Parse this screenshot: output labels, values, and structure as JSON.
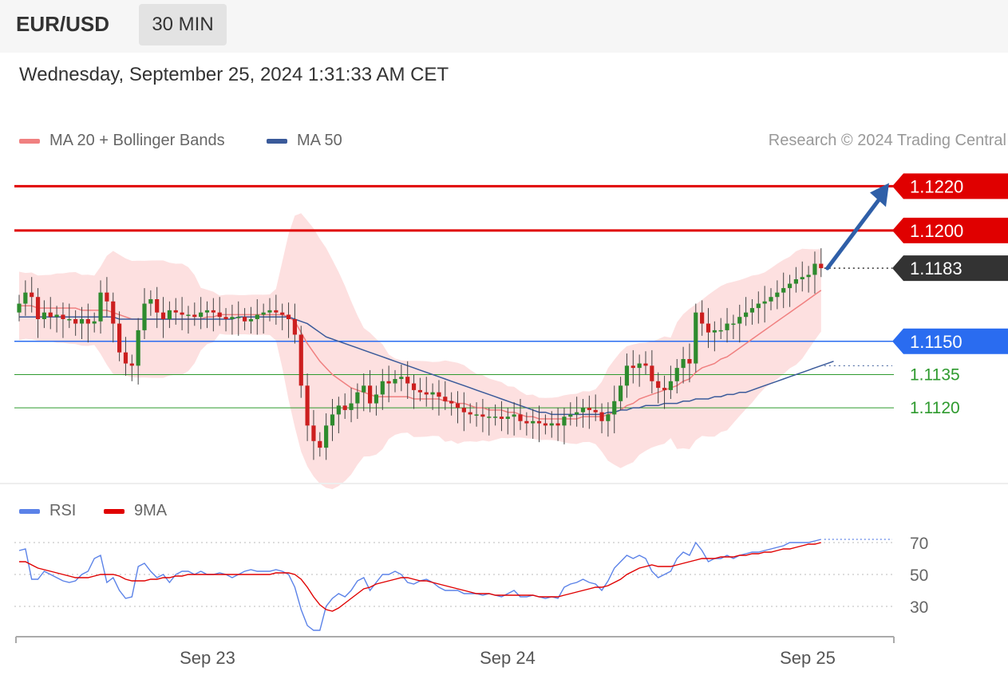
{
  "header": {
    "symbol": "EUR/USD",
    "timeframe": "30 MIN",
    "datetime": "Wednesday, September 25, 2024 1:31:33 AM CET"
  },
  "legend": {
    "ma20_label": "MA 20 + Bollinger Bands",
    "ma50_label": "MA 50",
    "rsi_label": "RSI",
    "rsi_ma_label": "9MA"
  },
  "copyright": "Research © 2024 Trading Central",
  "colors": {
    "bull": "#2e8b2e",
    "bear": "#cc1f1f",
    "resistance": "#e00000",
    "pivot": "#2a6cf0",
    "support": "#2e9a2e",
    "current": "#333333",
    "ma20": "#f08080",
    "ma50": "#3a5a9a",
    "band_fill": "#fde0e0",
    "rsi": "#5b82e8",
    "rsi_ma": "#e00000",
    "arrow": "#2f5fa8"
  },
  "chart_data": [
    {
      "type": "candlestick",
      "title": "",
      "y_range": [
        1.1088,
        1.1232
      ],
      "x_tick_labels": [
        "Sep 23",
        "Sep 24",
        "Sep 25"
      ],
      "levels": [
        {
          "value": 1.122,
          "label": "1.1220",
          "kind": "resistance"
        },
        {
          "value": 1.12,
          "label": "1.1200",
          "kind": "resistance"
        },
        {
          "value": 1.1183,
          "label": "1.1183",
          "kind": "current"
        },
        {
          "value": 1.115,
          "label": "1.1150",
          "kind": "pivot"
        },
        {
          "value": 1.1135,
          "label": "1.1135",
          "kind": "support"
        },
        {
          "value": 1.112,
          "label": "1.1120",
          "kind": "support"
        }
      ],
      "close": [
        1.1167,
        1.1172,
        1.117,
        1.116,
        1.1163,
        1.1161,
        1.1162,
        1.116,
        1.116,
        1.1158,
        1.116,
        1.1158,
        1.1159,
        1.1172,
        1.1168,
        1.1158,
        1.1145,
        1.114,
        1.1139,
        1.1155,
        1.1167,
        1.1169,
        1.1163,
        1.116,
        1.1164,
        1.1163,
        1.1162,
        1.1162,
        1.1161,
        1.1163,
        1.1164,
        1.1163,
        1.1161,
        1.116,
        1.1161,
        1.1161,
        1.1159,
        1.116,
        1.1162,
        1.1163,
        1.1164,
        1.1163,
        1.1162,
        1.116,
        1.1153,
        1.113,
        1.1112,
        1.1105,
        1.1102,
        1.1112,
        1.1117,
        1.1121,
        1.1119,
        1.1122,
        1.1127,
        1.113,
        1.1122,
        1.1126,
        1.1132,
        1.1131,
        1.1133,
        1.1134,
        1.1131,
        1.1128,
        1.1127,
        1.1126,
        1.1127,
        1.1125,
        1.1123,
        1.1122,
        1.112,
        1.1118,
        1.1117,
        1.1117,
        1.1116,
        1.1116,
        1.1116,
        1.1115,
        1.1116,
        1.1117,
        1.1114,
        1.1113,
        1.1114,
        1.1113,
        1.1112,
        1.1113,
        1.1112,
        1.1116,
        1.1117,
        1.1118,
        1.112,
        1.1119,
        1.1118,
        1.1114,
        1.1117,
        1.1123,
        1.113,
        1.1139,
        1.1138,
        1.114,
        1.1139,
        1.1132,
        1.1129,
        1.1128,
        1.1132,
        1.1138,
        1.1142,
        1.114,
        1.1163,
        1.1158,
        1.1154,
        1.1155,
        1.1155,
        1.1158,
        1.1158,
        1.1161,
        1.1163,
        1.1165,
        1.1167,
        1.1168,
        1.117,
        1.1172,
        1.1174,
        1.1176,
        1.1178,
        1.1179,
        1.118,
        1.1185,
        1.1183
      ],
      "moving_averages": {
        "ma20": [
          1.1166,
          1.1166,
          1.1166,
          1.1165,
          1.1165,
          1.1165,
          1.1165,
          1.1165,
          1.1165,
          1.1165,
          1.1164,
          1.1164,
          1.1164,
          1.1164,
          1.1164,
          1.1163,
          1.1162,
          1.1161,
          1.116,
          1.116,
          1.116,
          1.116,
          1.116,
          1.116,
          1.116,
          1.116,
          1.116,
          1.116,
          1.116,
          1.116,
          1.1161,
          1.1161,
          1.1162,
          1.1162,
          1.1162,
          1.1162,
          1.1162,
          1.1162,
          1.1162,
          1.1162,
          1.1162,
          1.1162,
          1.1162,
          1.1161,
          1.1159,
          1.1154,
          1.1149,
          1.1145,
          1.1141,
          1.1138,
          1.1135,
          1.1133,
          1.1131,
          1.1129,
          1.1128,
          1.1127,
          1.1126,
          1.1125,
          1.1125,
          1.1125,
          1.1125,
          1.1125,
          1.1125,
          1.1124,
          1.1124,
          1.1124,
          1.1124,
          1.1124,
          1.1123,
          1.1123,
          1.1122,
          1.1122,
          1.1121,
          1.112,
          1.112,
          1.1119,
          1.1119,
          1.1119,
          1.1118,
          1.1118,
          1.1117,
          1.1116,
          1.1116,
          1.1115,
          1.1115,
          1.1115,
          1.1115,
          1.1115,
          1.1115,
          1.1115,
          1.1116,
          1.1116,
          1.1116,
          1.1116,
          1.1117,
          1.1118,
          1.1119,
          1.1121,
          1.1122,
          1.1124,
          1.1125,
          1.1126,
          1.1127,
          1.1128,
          1.1129,
          1.113,
          1.1132,
          1.1133,
          1.1136,
          1.1138,
          1.1139,
          1.114,
          1.1142,
          1.1143,
          1.1145,
          1.1147,
          1.1149,
          1.1151,
          1.1153,
          1.1155,
          1.1157,
          1.1159,
          1.1161,
          1.1163,
          1.1165,
          1.1167,
          1.1169,
          1.1171,
          1.1173
        ],
        "ma50": [
          1.1161,
          1.1161,
          1.1161,
          1.1161,
          1.1161,
          1.1161,
          1.1161,
          1.1161,
          1.1161,
          1.1161,
          1.1161,
          1.1161,
          1.1161,
          1.1161,
          1.1161,
          1.1161,
          1.116,
          1.116,
          1.116,
          1.116,
          1.116,
          1.116,
          1.116,
          1.116,
          1.116,
          1.116,
          1.116,
          1.116,
          1.116,
          1.116,
          1.116,
          1.116,
          1.116,
          1.116,
          1.116,
          1.1161,
          1.1161,
          1.1161,
          1.1161,
          1.1161,
          1.1161,
          1.1161,
          1.1161,
          1.1161,
          1.116,
          1.1159,
          1.1158,
          1.1156,
          1.1154,
          1.1152,
          1.1151,
          1.115,
          1.1149,
          1.1148,
          1.1147,
          1.1146,
          1.1145,
          1.1144,
          1.1143,
          1.1142,
          1.1141,
          1.114,
          1.1139,
          1.1138,
          1.1137,
          1.1136,
          1.1135,
          1.1134,
          1.1133,
          1.1132,
          1.1131,
          1.113,
          1.1129,
          1.1128,
          1.1127,
          1.1126,
          1.1125,
          1.1124,
          1.1123,
          1.1122,
          1.1121,
          1.112,
          1.1119,
          1.1118,
          1.1118,
          1.1117,
          1.1117,
          1.1117,
          1.1117,
          1.1117,
          1.1117,
          1.1117,
          1.1117,
          1.1117,
          1.1118,
          1.1118,
          1.1119,
          1.1119,
          1.112,
          1.112,
          1.1121,
          1.1121,
          1.1121,
          1.1122,
          1.1122,
          1.1122,
          1.1123,
          1.1123,
          1.1124,
          1.1124,
          1.1124,
          1.1125,
          1.1125,
          1.1126,
          1.1126,
          1.1127,
          1.1127,
          1.1128,
          1.1129,
          1.113,
          1.1131,
          1.1132,
          1.1133,
          1.1134,
          1.1135,
          1.1136,
          1.1137,
          1.1138,
          1.1139,
          1.114,
          1.1141
        ]
      },
      "annotation": {
        "type": "arrow",
        "from": 1.1183,
        "to": 1.122,
        "label": ""
      }
    },
    {
      "type": "line",
      "title": "",
      "series": [
        {
          "name": "RSI",
          "values": [
            65,
            66,
            47,
            47,
            52,
            50,
            48,
            46,
            45,
            46,
            50,
            52,
            60,
            62,
            45,
            48,
            40,
            35,
            36,
            55,
            57,
            52,
            48,
            50,
            45,
            50,
            52,
            52,
            50,
            52,
            50,
            50,
            51,
            50,
            48,
            50,
            52,
            53,
            52,
            52,
            52,
            53,
            52,
            50,
            42,
            28,
            18,
            15,
            15,
            30,
            35,
            38,
            36,
            40,
            46,
            48,
            40,
            45,
            50,
            50,
            52,
            50,
            45,
            44,
            46,
            47,
            45,
            42,
            40,
            40,
            40,
            38,
            38,
            38,
            37,
            38,
            37,
            36,
            38,
            40,
            36,
            36,
            37,
            36,
            35,
            36,
            35,
            42,
            44,
            45,
            47,
            45,
            44,
            40,
            46,
            54,
            58,
            62,
            60,
            62,
            60,
            52,
            48,
            50,
            52,
            60,
            64,
            62,
            70,
            65,
            58,
            60,
            60,
            62,
            60,
            62,
            63,
            64,
            64,
            65,
            66,
            67,
            68,
            70,
            70,
            70,
            70,
            71,
            72
          ]
        },
        {
          "name": "9MA",
          "values": [
            58,
            58,
            56,
            54,
            53,
            52,
            51,
            50,
            49,
            48,
            48,
            48,
            49,
            50,
            50,
            50,
            49,
            47,
            46,
            46,
            46,
            47,
            47,
            48,
            48,
            49,
            49,
            50,
            50,
            50,
            50,
            50,
            50,
            50,
            50,
            50,
            50,
            50,
            50,
            50,
            50,
            51,
            51,
            51,
            50,
            47,
            42,
            36,
            31,
            28,
            27,
            29,
            32,
            35,
            38,
            41,
            42,
            44,
            45,
            46,
            47,
            48,
            48,
            47,
            46,
            46,
            45,
            44,
            43,
            42,
            41,
            40,
            39,
            38,
            38,
            38,
            37,
            37,
            37,
            37,
            37,
            37,
            37,
            36,
            36,
            36,
            36,
            37,
            38,
            39,
            40,
            41,
            42,
            42,
            43,
            45,
            47,
            50,
            52,
            54,
            55,
            56,
            55,
            55,
            55,
            56,
            57,
            58,
            59,
            60,
            60,
            60,
            61,
            61,
            61,
            62,
            62,
            63,
            63,
            64,
            64,
            65,
            66,
            66,
            67,
            68,
            69,
            69,
            70
          ]
        }
      ],
      "y_ticks": [
        70,
        50,
        30
      ],
      "y_range": [
        10,
        80
      ],
      "guides": [
        70,
        50,
        30
      ]
    }
  ]
}
